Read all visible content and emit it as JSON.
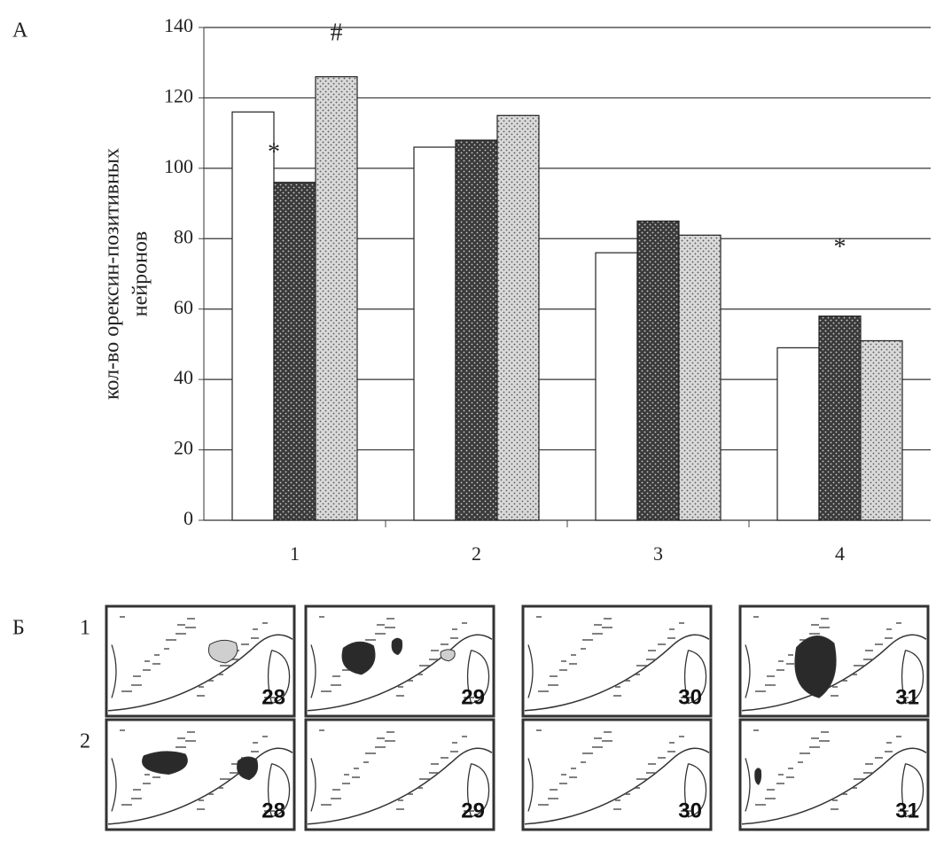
{
  "chart_data": {
    "type": "bar",
    "panel_label": "А",
    "y_label": [
      "кол-во орексин-позитивных",
      "нейронов"
    ],
    "categories": [
      "1",
      "2",
      "3",
      "4"
    ],
    "series": [
      {
        "color": "#ffffff",
        "values": [
          116,
          106,
          76,
          49
        ]
      },
      {
        "color": "#3a3a3a",
        "values": [
          96,
          108,
          85,
          58
        ]
      },
      {
        "color": "#d9d9d9",
        "values": [
          126,
          115,
          81,
          51
        ]
      }
    ],
    "ylim": [
      0,
      140
    ],
    "yticks": [
      0,
      20,
      40,
      60,
      80,
      100,
      120,
      140
    ],
    "grid": true,
    "annotations": [
      "*",
      "#",
      "*"
    ]
  },
  "panel_b": {
    "panel_label": "Б",
    "rows": [
      {
        "label": "1",
        "sections": [
          "28",
          "29",
          "30",
          "31"
        ]
      },
      {
        "label": "2",
        "sections": [
          "28",
          "29",
          "30",
          "31"
        ]
      }
    ]
  }
}
